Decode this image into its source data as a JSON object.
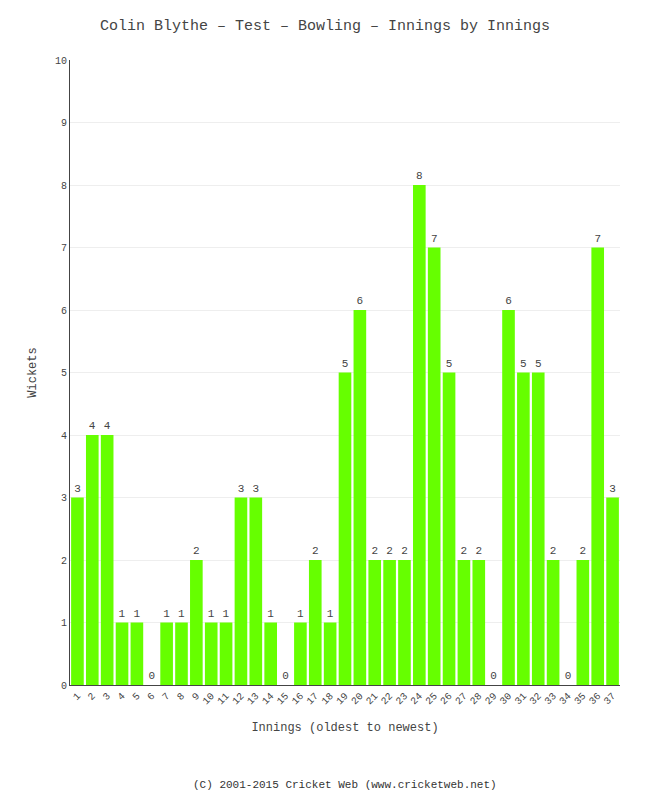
{
  "chart_data": {
    "type": "bar",
    "title": "Colin Blythe – Test – Bowling – Innings by Innings",
    "xlabel": "Innings (oldest to newest)",
    "ylabel": "Wickets",
    "annotations": [
      {
        "text": "(C) 2001-2015 Cricket Web (www.cricketweb.net)"
      }
    ],
    "categories": [
      "1",
      "2",
      "3",
      "4",
      "5",
      "6",
      "7",
      "8",
      "9",
      "10",
      "11",
      "12",
      "13",
      "14",
      "15",
      "16",
      "17",
      "18",
      "19",
      "20",
      "21",
      "22",
      "23",
      "24",
      "25",
      "26",
      "27",
      "28",
      "29",
      "30",
      "31",
      "32",
      "33",
      "34",
      "35",
      "36",
      "37"
    ],
    "values": [
      3,
      4,
      4,
      1,
      1,
      0,
      1,
      1,
      2,
      1,
      1,
      3,
      3,
      1,
      0,
      1,
      2,
      1,
      5,
      6,
      2,
      2,
      2,
      8,
      7,
      5,
      2,
      2,
      0,
      6,
      5,
      5,
      2,
      0,
      2,
      7,
      3
    ],
    "color": "#66ff00",
    "ylim": [
      0,
      10
    ],
    "yticks": [
      0,
      1,
      2,
      3,
      4,
      5,
      6,
      7,
      8,
      9,
      10
    ],
    "grid": true,
    "data_labels": true
  }
}
